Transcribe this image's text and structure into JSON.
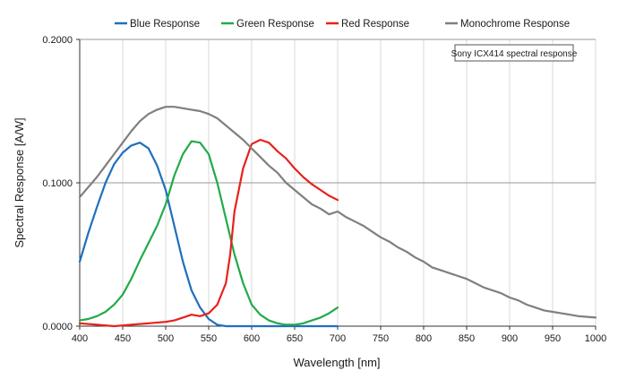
{
  "chart_data": {
    "type": "line",
    "title": "",
    "xlabel": "Wavelength [nm]",
    "ylabel": "Spectral Response [A/W]",
    "xlim": [
      400,
      1000
    ],
    "ylim": [
      0,
      0.2
    ],
    "x_ticks": [
      "400",
      "450",
      "500",
      "550",
      "600",
      "650",
      "700",
      "750",
      "800",
      "850",
      "900",
      "950",
      "1000"
    ],
    "y_ticks": [
      "0.0000",
      "0.1000",
      "0.2000"
    ],
    "x_grid": true,
    "y_grid": true,
    "legend_position": "top",
    "annotation": "Sony ICX414 spectral response",
    "series": [
      {
        "name": "Blue Response",
        "color": "#1f6fbf",
        "points": [
          [
            400,
            0.045
          ],
          [
            410,
            0.065
          ],
          [
            420,
            0.083
          ],
          [
            430,
            0.1
          ],
          [
            440,
            0.113
          ],
          [
            450,
            0.121
          ],
          [
            460,
            0.126
          ],
          [
            470,
            0.128
          ],
          [
            480,
            0.124
          ],
          [
            490,
            0.112
          ],
          [
            500,
            0.095
          ],
          [
            510,
            0.07
          ],
          [
            520,
            0.045
          ],
          [
            530,
            0.025
          ],
          [
            540,
            0.013
          ],
          [
            550,
            0.005
          ],
          [
            560,
            0.001
          ],
          [
            570,
            0
          ],
          [
            600,
            0
          ],
          [
            650,
            0
          ],
          [
            700,
            0
          ]
        ]
      },
      {
        "name": "Green Response",
        "color": "#22aa4a",
        "points": [
          [
            400,
            0.004
          ],
          [
            410,
            0.005
          ],
          [
            420,
            0.007
          ],
          [
            430,
            0.01
          ],
          [
            440,
            0.015
          ],
          [
            450,
            0.022
          ],
          [
            460,
            0.033
          ],
          [
            470,
            0.046
          ],
          [
            480,
            0.058
          ],
          [
            490,
            0.07
          ],
          [
            500,
            0.085
          ],
          [
            510,
            0.105
          ],
          [
            520,
            0.12
          ],
          [
            530,
            0.129
          ],
          [
            540,
            0.128
          ],
          [
            550,
            0.12
          ],
          [
            560,
            0.1
          ],
          [
            570,
            0.075
          ],
          [
            580,
            0.05
          ],
          [
            590,
            0.03
          ],
          [
            600,
            0.015
          ],
          [
            610,
            0.008
          ],
          [
            620,
            0.004
          ],
          [
            630,
            0.002
          ],
          [
            640,
            0.001
          ],
          [
            650,
            0.001
          ],
          [
            660,
            0.002
          ],
          [
            670,
            0.004
          ],
          [
            680,
            0.006
          ],
          [
            690,
            0.009
          ],
          [
            700,
            0.013
          ]
        ]
      },
      {
        "name": "Red Response",
        "color": "#e8211c",
        "points": [
          [
            400,
            0.002
          ],
          [
            420,
            0.001
          ],
          [
            440,
            0
          ],
          [
            460,
            0.001
          ],
          [
            480,
            0.002
          ],
          [
            500,
            0.003
          ],
          [
            510,
            0.004
          ],
          [
            520,
            0.006
          ],
          [
            530,
            0.008
          ],
          [
            540,
            0.007
          ],
          [
            550,
            0.009
          ],
          [
            560,
            0.015
          ],
          [
            570,
            0.03
          ],
          [
            575,
            0.05
          ],
          [
            580,
            0.08
          ],
          [
            590,
            0.11
          ],
          [
            600,
            0.127
          ],
          [
            610,
            0.13
          ],
          [
            620,
            0.128
          ],
          [
            630,
            0.122
          ],
          [
            640,
            0.117
          ],
          [
            650,
            0.11
          ],
          [
            660,
            0.104
          ],
          [
            670,
            0.099
          ],
          [
            680,
            0.095
          ],
          [
            690,
            0.091
          ],
          [
            700,
            0.088
          ]
        ]
      },
      {
        "name": "Monochrome Response",
        "color": "#7f7f7f",
        "points": [
          [
            400,
            0.09
          ],
          [
            410,
            0.097
          ],
          [
            420,
            0.104
          ],
          [
            430,
            0.112
          ],
          [
            440,
            0.12
          ],
          [
            450,
            0.128
          ],
          [
            460,
            0.136
          ],
          [
            470,
            0.143
          ],
          [
            480,
            0.148
          ],
          [
            490,
            0.151
          ],
          [
            500,
            0.153
          ],
          [
            510,
            0.153
          ],
          [
            520,
            0.152
          ],
          [
            530,
            0.151
          ],
          [
            540,
            0.15
          ],
          [
            550,
            0.148
          ],
          [
            560,
            0.145
          ],
          [
            570,
            0.14
          ],
          [
            580,
            0.135
          ],
          [
            590,
            0.13
          ],
          [
            600,
            0.124
          ],
          [
            610,
            0.118
          ],
          [
            620,
            0.112
          ],
          [
            630,
            0.107
          ],
          [
            640,
            0.1
          ],
          [
            650,
            0.095
          ],
          [
            660,
            0.09
          ],
          [
            670,
            0.085
          ],
          [
            680,
            0.082
          ],
          [
            690,
            0.078
          ],
          [
            700,
            0.08
          ],
          [
            710,
            0.076
          ],
          [
            720,
            0.073
          ],
          [
            730,
            0.07
          ],
          [
            740,
            0.066
          ],
          [
            750,
            0.062
          ],
          [
            760,
            0.059
          ],
          [
            770,
            0.055
          ],
          [
            780,
            0.052
          ],
          [
            790,
            0.048
          ],
          [
            800,
            0.045
          ],
          [
            810,
            0.041
          ],
          [
            820,
            0.039
          ],
          [
            830,
            0.037
          ],
          [
            840,
            0.035
          ],
          [
            850,
            0.033
          ],
          [
            860,
            0.03
          ],
          [
            870,
            0.027
          ],
          [
            880,
            0.025
          ],
          [
            890,
            0.023
          ],
          [
            900,
            0.02
          ],
          [
            910,
            0.018
          ],
          [
            920,
            0.015
          ],
          [
            930,
            0.013
          ],
          [
            940,
            0.011
          ],
          [
            950,
            0.01
          ],
          [
            960,
            0.009
          ],
          [
            970,
            0.008
          ],
          [
            980,
            0.007
          ],
          [
            990,
            0.0065
          ],
          [
            1000,
            0.006
          ]
        ]
      }
    ]
  }
}
